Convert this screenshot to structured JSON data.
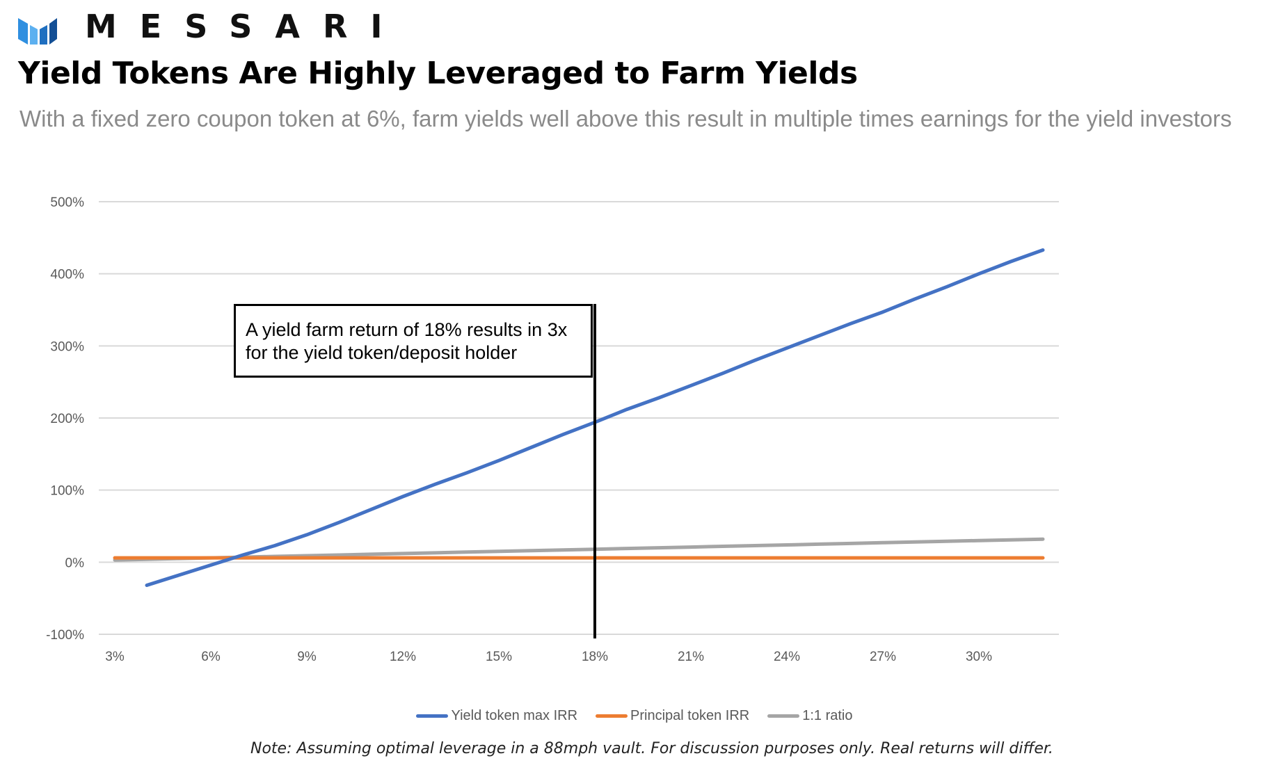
{
  "header": {
    "logo_text": "MESSARI",
    "logo_icon": "messari-logo-icon",
    "title": "Yield Tokens Are Highly Leveraged to Farm Yields",
    "subtitle": "With a fixed zero coupon token at 6%, farm yields well above this result in multiple times earnings for the yield investors"
  },
  "annotation": {
    "line1": "A yield farm return of 18% results in 3x",
    "line2": "for the yield token/deposit holder"
  },
  "note": "Note: Assuming optimal leverage in a 88mph vault. For discussion purposes only. Real returns will differ.",
  "chart_data": {
    "type": "line",
    "title": "",
    "xlabel": "",
    "ylabel": "",
    "x": [
      3,
      4,
      5,
      6,
      7,
      8,
      9,
      10,
      11,
      12,
      13,
      14,
      15,
      16,
      17,
      18,
      19,
      20,
      21,
      22,
      23,
      24,
      25,
      26,
      27,
      28,
      29,
      30,
      31,
      32
    ],
    "x_tick_labels": [
      "3%",
      "6%",
      "9%",
      "12%",
      "15%",
      "18%",
      "21%",
      "24%",
      "27%",
      "30%"
    ],
    "x_tick_values": [
      3,
      6,
      9,
      12,
      15,
      18,
      21,
      24,
      27,
      30
    ],
    "xlim": [
      2.5,
      32.5
    ],
    "y_tick_labels": [
      "500%",
      "400%",
      "300%",
      "200%",
      "100%",
      "0%",
      "-100%"
    ],
    "y_tick_values": [
      500,
      400,
      300,
      200,
      100,
      0,
      -100
    ],
    "ylim": [
      -100,
      500
    ],
    "grid": true,
    "legend_position": "bottom",
    "vertical_marker_x": 18,
    "series": [
      {
        "name": "Yield token max IRR",
        "color": "#4472c4",
        "x": [
          4,
          5,
          6,
          7,
          8,
          9,
          10,
          11,
          12,
          13,
          14,
          15,
          16,
          17,
          18,
          19,
          20,
          21,
          22,
          23,
          24,
          25,
          26,
          27,
          28,
          29,
          30,
          31,
          32
        ],
        "values": [
          -32,
          -18,
          -4,
          10,
          23,
          38,
          55,
          73,
          91,
          108,
          124,
          141,
          159,
          177,
          194,
          212,
          228,
          245,
          262,
          280,
          297,
          314,
          331,
          347,
          365,
          382,
          400,
          417,
          433
        ]
      },
      {
        "name": "Principal token IRR",
        "color": "#ed7d31",
        "x": [
          3,
          32
        ],
        "values": [
          6,
          6
        ]
      },
      {
        "name": "1:1 ratio",
        "color": "#a5a5a5",
        "x": [
          3,
          4,
          5,
          6,
          7,
          8,
          9,
          10,
          11,
          12,
          13,
          14,
          15,
          16,
          17,
          18,
          19,
          20,
          21,
          22,
          23,
          24,
          25,
          26,
          27,
          28,
          29,
          30,
          31,
          32
        ],
        "values": [
          3,
          4,
          5,
          6,
          7,
          8,
          9,
          10,
          11,
          12,
          13,
          14,
          15,
          16,
          17,
          18,
          19,
          20,
          21,
          22,
          23,
          24,
          25,
          26,
          27,
          28,
          29,
          30,
          31,
          32
        ]
      }
    ]
  }
}
